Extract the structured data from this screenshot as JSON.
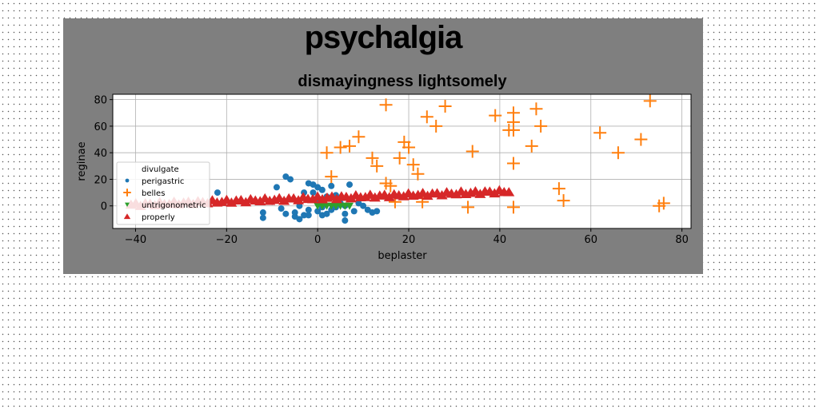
{
  "chart_data": {
    "type": "scatter",
    "title": "psychalgia",
    "subtitle": "dismayingness lightsomely",
    "xlabel": "beplaster",
    "ylabel": "reginae",
    "xlim": [
      -45,
      82
    ],
    "ylim": [
      -17,
      84
    ],
    "xticks": [
      -40,
      -20,
      0,
      20,
      40,
      60,
      80
    ],
    "yticks": [
      0,
      20,
      40,
      60,
      80
    ],
    "grid": true,
    "legend_position": "lower-left",
    "legend_entries": [
      "divulgate",
      "perigastric",
      "belles",
      "untrigonometric",
      "properly"
    ],
    "series": [
      {
        "name": "divulgate",
        "marker": "none",
        "color": "#1f77b4",
        "points": []
      },
      {
        "name": "perigastric",
        "marker": "circle",
        "color": "#1f77b4",
        "points": [
          [
            -22,
            10
          ],
          [
            -12,
            -5
          ],
          [
            -12,
            -9
          ],
          [
            -10,
            3
          ],
          [
            -9,
            14
          ],
          [
            -8,
            -2
          ],
          [
            -7,
            -6
          ],
          [
            -7,
            22
          ],
          [
            -6,
            20
          ],
          [
            -5,
            -8
          ],
          [
            -5,
            -5
          ],
          [
            -4,
            -10
          ],
          [
            -4,
            0
          ],
          [
            -3,
            -7
          ],
          [
            -3,
            10
          ],
          [
            -2,
            17
          ],
          [
            -2,
            -3
          ],
          [
            -2,
            -7
          ],
          [
            -1,
            16
          ],
          [
            -1,
            10
          ],
          [
            0,
            -4
          ],
          [
            0,
            2
          ],
          [
            0,
            14
          ],
          [
            1,
            12
          ],
          [
            1,
            -1
          ],
          [
            1,
            -7
          ],
          [
            2,
            -6
          ],
          [
            2,
            7
          ],
          [
            3,
            -3
          ],
          [
            3,
            15
          ],
          [
            4,
            -1
          ],
          [
            4,
            8
          ],
          [
            5,
            2
          ],
          [
            6,
            0
          ],
          [
            6,
            -6
          ],
          [
            6,
            -11
          ],
          [
            7,
            16
          ],
          [
            8,
            -4
          ],
          [
            9,
            2
          ],
          [
            10,
            0
          ],
          [
            11,
            -3
          ],
          [
            12,
            -5
          ],
          [
            13,
            -4
          ]
        ]
      },
      {
        "name": "belles",
        "marker": "plus",
        "color": "#ff7f0e",
        "points": [
          [
            2,
            40
          ],
          [
            3,
            22
          ],
          [
            5,
            44
          ],
          [
            7,
            45
          ],
          [
            9,
            52
          ],
          [
            12,
            36
          ],
          [
            13,
            30
          ],
          [
            15,
            76
          ],
          [
            15,
            17
          ],
          [
            18,
            36
          ],
          [
            19,
            48
          ],
          [
            20,
            44
          ],
          [
            21,
            31
          ],
          [
            22,
            24
          ],
          [
            23,
            3
          ],
          [
            24,
            67
          ],
          [
            26,
            60
          ],
          [
            28,
            75
          ],
          [
            33,
            -1
          ],
          [
            34,
            41
          ],
          [
            39,
            68
          ],
          [
            42,
            57
          ],
          [
            43,
            57
          ],
          [
            43,
            70
          ],
          [
            43,
            63
          ],
          [
            43,
            32
          ],
          [
            43,
            -1
          ],
          [
            47,
            45
          ],
          [
            48,
            73
          ],
          [
            49,
            60
          ],
          [
            53,
            13
          ],
          [
            54,
            4
          ],
          [
            62,
            55
          ],
          [
            66,
            40
          ],
          [
            71,
            50
          ],
          [
            73,
            79
          ],
          [
            75,
            0
          ],
          [
            76,
            2
          ],
          [
            16,
            15
          ],
          [
            17,
            3
          ]
        ]
      },
      {
        "name": "untrigonometric",
        "marker": "triangle-down",
        "color": "#2ca02c",
        "points": [
          [
            0,
            0
          ],
          [
            1,
            0
          ],
          [
            2,
            0
          ],
          [
            3,
            0
          ],
          [
            4,
            0
          ],
          [
            5,
            0
          ],
          [
            6,
            0
          ],
          [
            7,
            0
          ]
        ]
      },
      {
        "name": "properly",
        "marker": "triangle-up",
        "color": "#d62728",
        "line": {
          "x_from": -41,
          "x_to": 42,
          "count": 80,
          "y_from": 1,
          "y_to": 11,
          "jitter": 1.2
        }
      }
    ]
  }
}
